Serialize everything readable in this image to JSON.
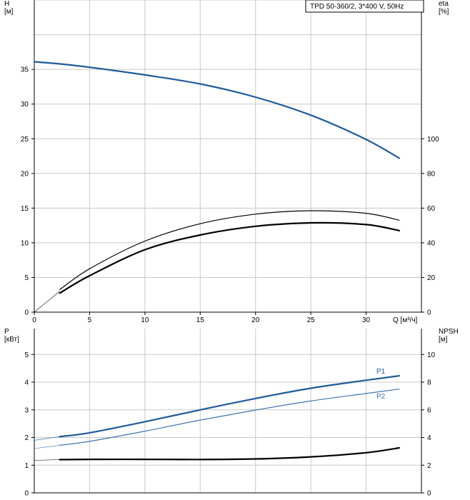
{
  "title": "TPD 50-360/2, 3*400 V, 50Hz",
  "colors": {
    "blue": "#1f5b99",
    "lightblue": "#3f74ad",
    "black": "#000000",
    "grid": "#c8c8c8"
  },
  "chart_data": [
    {
      "type": "line",
      "title": "TPD 50-360/2, 3*400 V, 50Hz",
      "xlabel": "Q [м³/ч]",
      "ylabel": "H\n[м]",
      "y2label": "eta\n[%]",
      "xlim": [
        0,
        35
      ],
      "ylim": [
        0,
        45
      ],
      "y2lim": [
        0,
        180
      ],
      "xticks": [
        0,
        5,
        10,
        15,
        20,
        25,
        30
      ],
      "yticks": [
        0,
        5,
        10,
        15,
        20,
        25,
        30,
        35
      ],
      "y2ticks": [
        0,
        20,
        40,
        60,
        80,
        100
      ],
      "grid": true,
      "series": [
        {
          "id": "H",
          "axis": "left",
          "color": "#1f5b99",
          "width": 2.2,
          "x": [
            0,
            2.3,
            5,
            10,
            15,
            20,
            25,
            30,
            33
          ],
          "y": [
            36.1,
            35.8,
            35.3,
            34.2,
            32.9,
            31.0,
            28.4,
            24.9,
            22.2
          ]
        },
        {
          "id": "H-extension",
          "axis": "left",
          "color": "#1f5b99",
          "width": 0.8,
          "x": [
            0,
            2.3
          ],
          "y": [
            36.1,
            35.8
          ]
        },
        {
          "id": "eta1",
          "axis": "right",
          "color": "#000000",
          "width": 1.2,
          "x": [
            2.3,
            5,
            10,
            15,
            20,
            25,
            30,
            33
          ],
          "y": [
            13,
            25,
            41,
            51,
            56.5,
            58.5,
            57,
            53
          ]
        },
        {
          "id": "eta2",
          "axis": "right",
          "color": "#000000",
          "width": 2.2,
          "x": [
            2.3,
            5,
            10,
            15,
            20,
            25,
            30,
            33
          ],
          "y": [
            11,
            21,
            36,
            44.5,
            49.5,
            51.5,
            50.5,
            47
          ]
        },
        {
          "id": "eta-extension",
          "axis": "right",
          "color": "#000000",
          "width": 0.6,
          "x": [
            0,
            2.3
          ],
          "y": [
            0,
            12
          ]
        }
      ]
    },
    {
      "type": "line",
      "xlabel": "",
      "ylabel": "P\n[кВт]",
      "y2label": "NPSH\n[м]",
      "xlim": [
        0,
        35
      ],
      "ylim": [
        0,
        6
      ],
      "y2lim": [
        0,
        12
      ],
      "yticks": [
        0,
        1,
        2,
        3,
        4,
        5
      ],
      "y2ticks": [
        0,
        2,
        4,
        6,
        8,
        10
      ],
      "grid": true,
      "series": [
        {
          "name": "P1",
          "axis": "left",
          "color": "#1f5b99",
          "width": 2.2,
          "x": [
            2.3,
            5,
            10,
            15,
            20,
            25,
            30,
            33
          ],
          "y": [
            2.03,
            2.17,
            2.57,
            3.0,
            3.41,
            3.78,
            4.07,
            4.23
          ]
        },
        {
          "name": "P2",
          "axis": "left",
          "color": "#3f74ad",
          "width": 1.2,
          "x": [
            2.3,
            5,
            10,
            15,
            20,
            25,
            30,
            33
          ],
          "y": [
            1.72,
            1.86,
            2.23,
            2.63,
            2.99,
            3.32,
            3.59,
            3.75
          ]
        },
        {
          "id": "P1-extension",
          "axis": "left",
          "color": "#1f5b99",
          "width": 0.6,
          "x": [
            0,
            2.3
          ],
          "y": [
            1.9,
            2.03
          ]
        },
        {
          "id": "P2-extension",
          "axis": "left",
          "color": "#3f74ad",
          "width": 0.6,
          "x": [
            0,
            2.3
          ],
          "y": [
            1.6,
            1.72
          ]
        },
        {
          "id": "NPSH",
          "axis": "right",
          "color": "#000000",
          "width": 2.2,
          "x": [
            2.3,
            5,
            10,
            15,
            20,
            25,
            30,
            33
          ],
          "y": [
            2.4,
            2.42,
            2.42,
            2.41,
            2.45,
            2.6,
            2.9,
            3.25
          ]
        },
        {
          "id": "NPSH-extension",
          "axis": "right",
          "color": "#000000",
          "width": 0.6,
          "x": [
            0,
            2.3
          ],
          "y": [
            2.35,
            2.4
          ]
        }
      ],
      "labels": [
        {
          "text": "P1"
        },
        {
          "text": "P2"
        }
      ]
    }
  ]
}
